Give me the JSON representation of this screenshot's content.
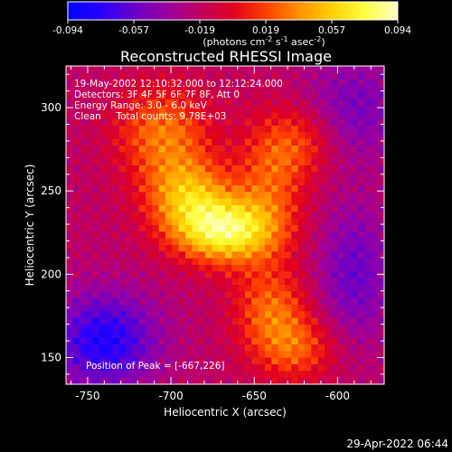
{
  "chart_data": {
    "type": "heatmap",
    "title": "Reconstructed RHESSI Image",
    "xlabel": "Heliocentric X (arcsec)",
    "ylabel": "Heliocentric Y (arcsec)",
    "xlim": [
      -763,
      -572
    ],
    "ylim": [
      134,
      325
    ],
    "x_ticks": [
      -750,
      -700,
      -650,
      -600
    ],
    "y_ticks": [
      150,
      200,
      250,
      300
    ],
    "colorbar": {
      "label": "(photons cm",
      "label_exp1": "-2",
      "label_mid": " s",
      "label_exp2": "-1",
      "label_mid2": " asec",
      "label_exp3": "-2",
      "label_end": ")",
      "range": [
        -0.094,
        0.094
      ],
      "ticks": [
        "-0.094",
        "-0.057",
        "-0.019",
        "0.019",
        "0.057",
        "0.094"
      ],
      "colors": [
        "#0000ff",
        "#2a00ff",
        "#6a00c8",
        "#9a00a0",
        "#c00060",
        "#e00020",
        "#ff4000",
        "#ff9000",
        "#ffd000",
        "#ffff40",
        "#ffffc8"
      ]
    },
    "sources": [
      {
        "x": -667,
        "y": 226,
        "amp": 0.094,
        "sx": 22,
        "sy": 14
      },
      {
        "x": -690,
        "y": 248,
        "amp": 0.06,
        "sx": 18,
        "sy": 16
      },
      {
        "x": -705,
        "y": 285,
        "amp": 0.05,
        "sx": 20,
        "sy": 20
      },
      {
        "x": -640,
        "y": 260,
        "amp": 0.04,
        "sx": 15,
        "sy": 25
      },
      {
        "x": -640,
        "y": 180,
        "amp": 0.045,
        "sx": 16,
        "sy": 18
      },
      {
        "x": -625,
        "y": 155,
        "amp": 0.04,
        "sx": 18,
        "sy": 14
      },
      {
        "x": -620,
        "y": 280,
        "amp": 0.03,
        "sx": 15,
        "sy": 15
      },
      {
        "x": -740,
        "y": 160,
        "amp": -0.06,
        "sx": 22,
        "sy": 20
      },
      {
        "x": -590,
        "y": 300,
        "amp": -0.03,
        "sx": 22,
        "sy": 22
      },
      {
        "x": -590,
        "y": 200,
        "amp": -0.035,
        "sx": 16,
        "sy": 30
      }
    ],
    "info": {
      "line1": "19-May-2002 12:10:32.000 to 12:12:24.000",
      "line2": "Detectors: 3F 4F 5F 6F 7F 8F, Att 0",
      "line3": "Energy Range: 3.0 - 6.0 keV",
      "line4": "Clean     Total counts: 9.78E+03"
    },
    "peak_label": "Position of Peak = [-667,226]",
    "timestamp": "29-Apr-2022 06:44"
  }
}
